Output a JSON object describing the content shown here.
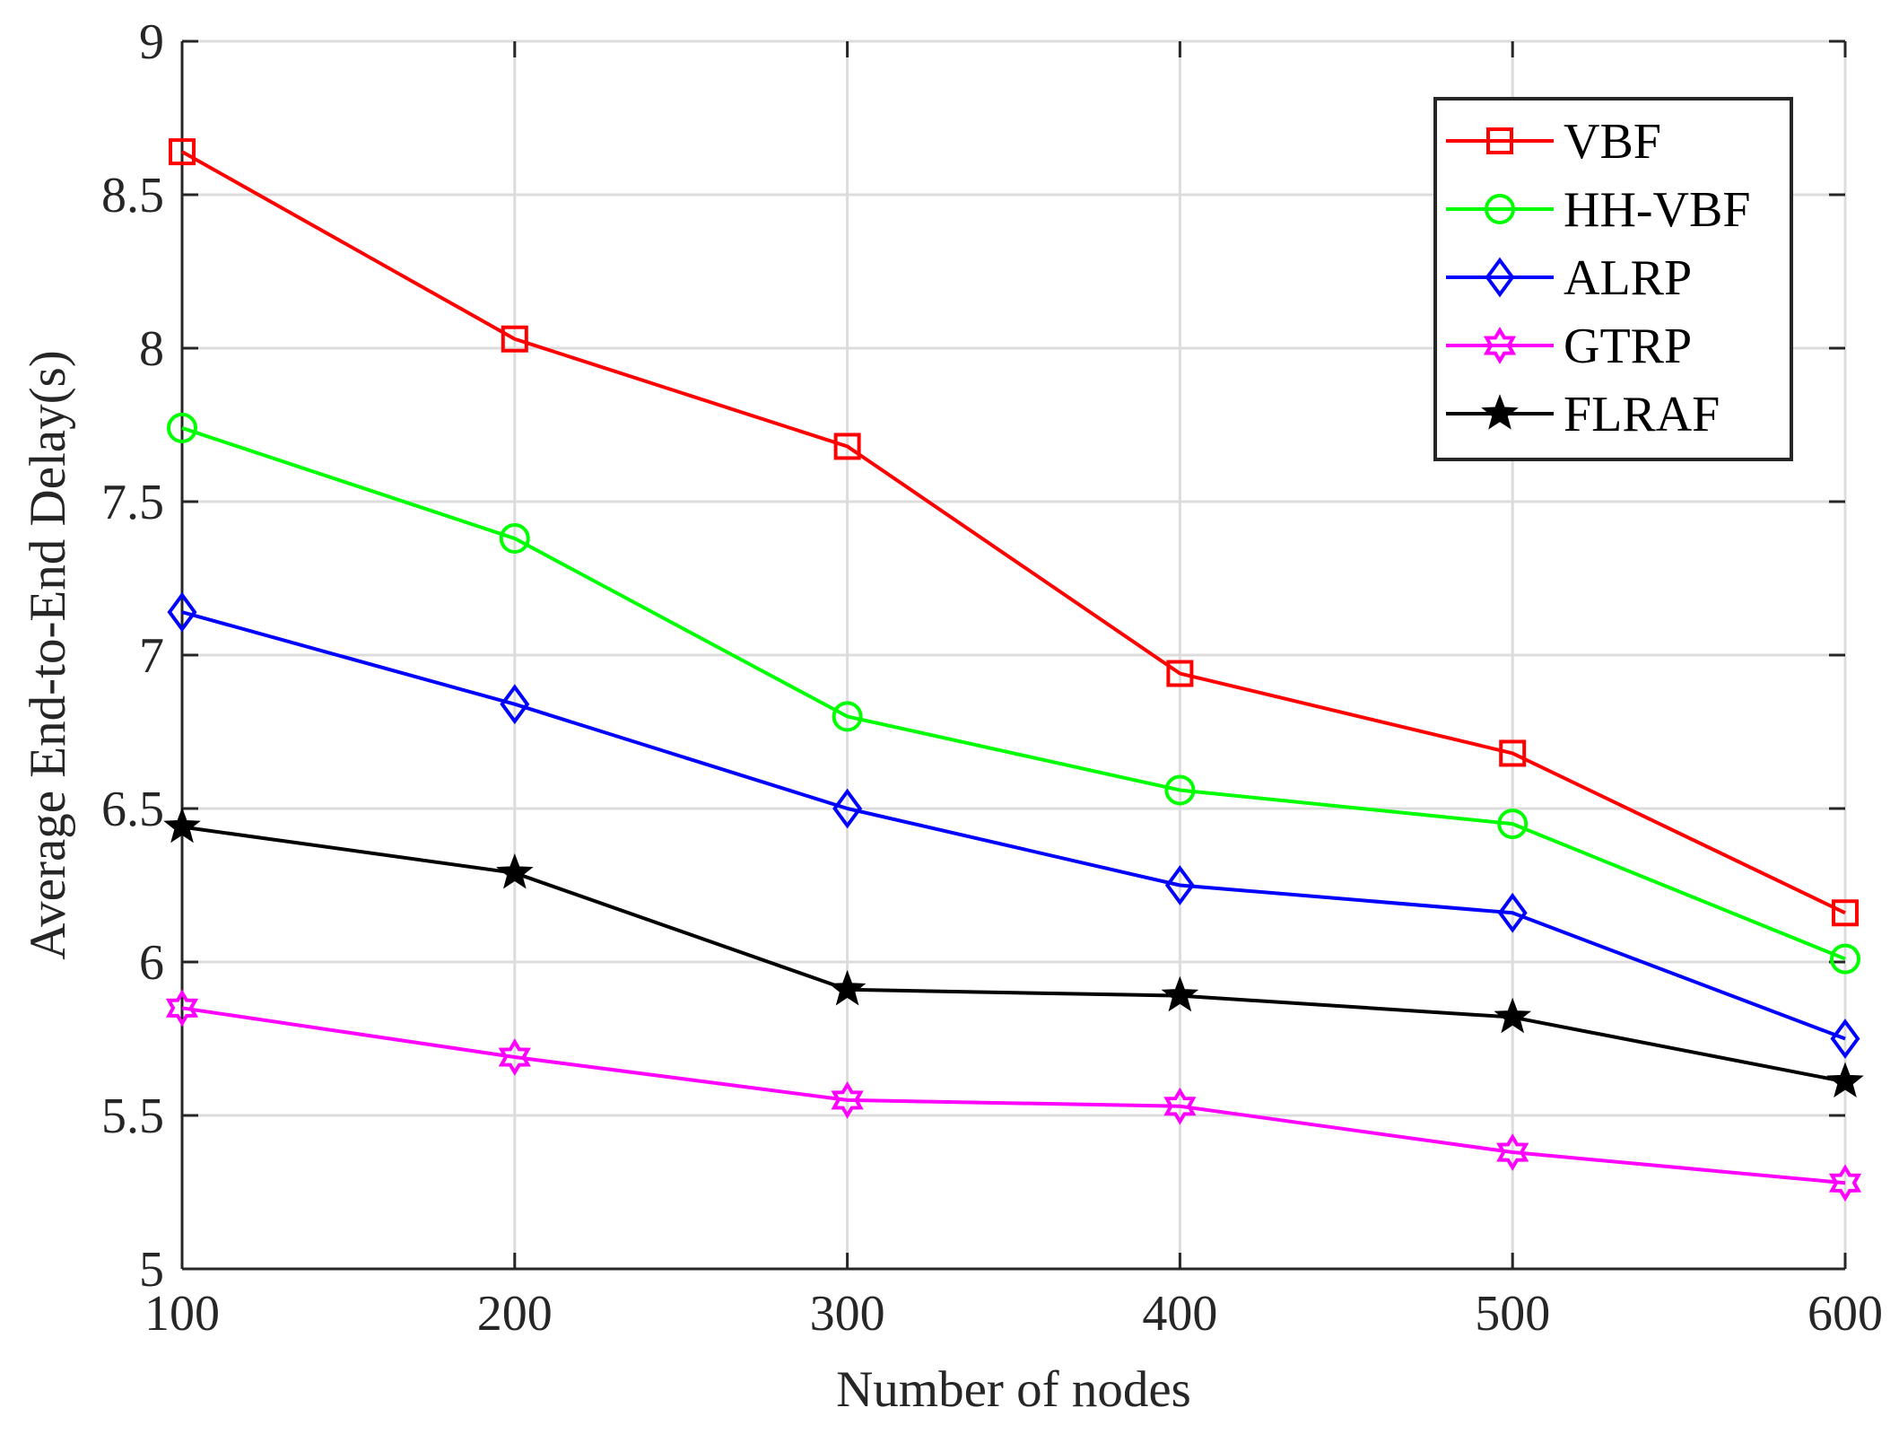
{
  "chart_data": {
    "type": "line",
    "title": "",
    "xlabel": "Number of nodes",
    "ylabel": "Average End-to-End Delay(s)",
    "x": [
      100,
      200,
      300,
      400,
      500,
      600
    ],
    "xlim": [
      100,
      600
    ],
    "ylim": [
      5,
      9
    ],
    "xticks": [
      "100",
      "200",
      "300",
      "400",
      "500",
      "600"
    ],
    "yticks": [
      "5",
      "5.5",
      "6",
      "6.5",
      "7",
      "7.5",
      "8",
      "8.5",
      "9"
    ],
    "grid": true,
    "legend_position": "top-right",
    "series": [
      {
        "name": "VBF",
        "values": [
          8.64,
          8.03,
          7.68,
          6.94,
          6.68,
          6.16
        ],
        "color": "#ff0000",
        "marker": "square"
      },
      {
        "name": "HH-VBF",
        "values": [
          7.74,
          7.38,
          6.8,
          6.56,
          6.45,
          6.01
        ],
        "color": "#00ff00",
        "marker": "circle"
      },
      {
        "name": "ALRP",
        "values": [
          7.14,
          6.84,
          6.5,
          6.25,
          6.16,
          5.75
        ],
        "color": "#0000ff",
        "marker": "diamond"
      },
      {
        "name": "GTRP",
        "values": [
          5.85,
          5.69,
          5.55,
          5.53,
          5.38,
          5.28
        ],
        "color": "#ff00ff",
        "marker": "hexagram"
      },
      {
        "name": "FLRAF",
        "values": [
          6.44,
          6.29,
          5.91,
          5.89,
          5.82,
          5.61
        ],
        "color": "#000000",
        "marker": "pentagram"
      }
    ]
  }
}
